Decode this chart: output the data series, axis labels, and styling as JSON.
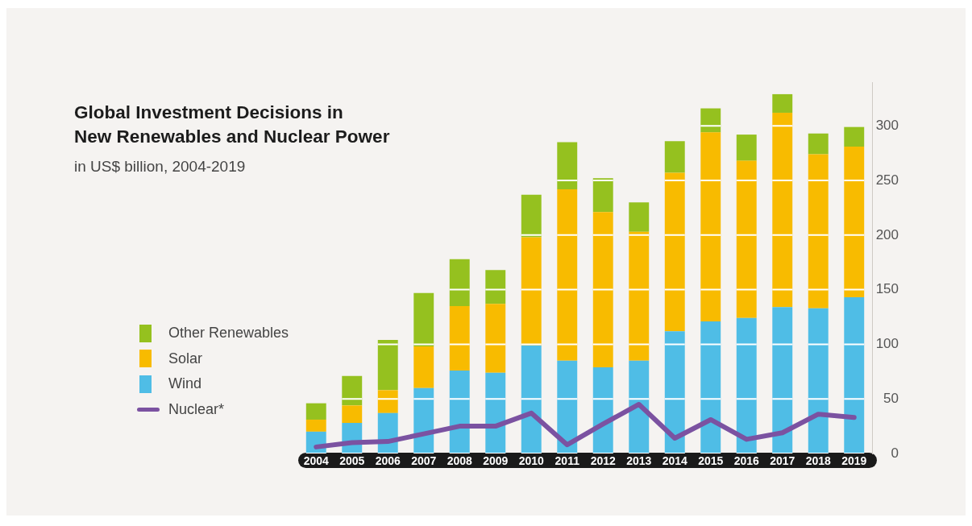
{
  "chart_data": {
    "type": "bar",
    "title": "Global Investment Decisions in\nNew Renewables and Nuclear Power",
    "subtitle": "in US$ billion, 2004-2019",
    "categories": [
      "2004",
      "2005",
      "2006",
      "2007",
      "2008",
      "2009",
      "2010",
      "2011",
      "2012",
      "2013",
      "2014",
      "2015",
      "2016",
      "2017",
      "2018",
      "2019"
    ],
    "stacked": true,
    "series": [
      {
        "name": "Wind",
        "color": "#4fbde6",
        "values": [
          20,
          28,
          37,
          60,
          76,
          74,
          99,
          85,
          79,
          85,
          112,
          121,
          124,
          134,
          133,
          143
        ]
      },
      {
        "name": "Solar",
        "color": "#f8bb00",
        "values": [
          11,
          16,
          21,
          38,
          59,
          63,
          99,
          157,
          142,
          118,
          145,
          173,
          144,
          178,
          141,
          138
        ]
      },
      {
        "name": "Other Renewables",
        "color": "#95c11f",
        "values": [
          15,
          27,
          46,
          49,
          43,
          31,
          39,
          43,
          31,
          27,
          29,
          22,
          24,
          17,
          19,
          18
        ]
      },
      {
        "name": "Nuclear*",
        "type": "line",
        "color": "#7b52a1",
        "values": [
          6,
          10,
          11,
          18,
          25,
          25,
          37,
          8,
          27,
          45,
          14,
          31,
          13,
          19,
          36,
          33
        ]
      }
    ],
    "ylim": [
      0,
      340
    ],
    "yticks": [
      0,
      50,
      100,
      150,
      200,
      250,
      300
    ],
    "grid": "y",
    "legend": "left",
    "marker": "none",
    "line_style": "solid"
  }
}
